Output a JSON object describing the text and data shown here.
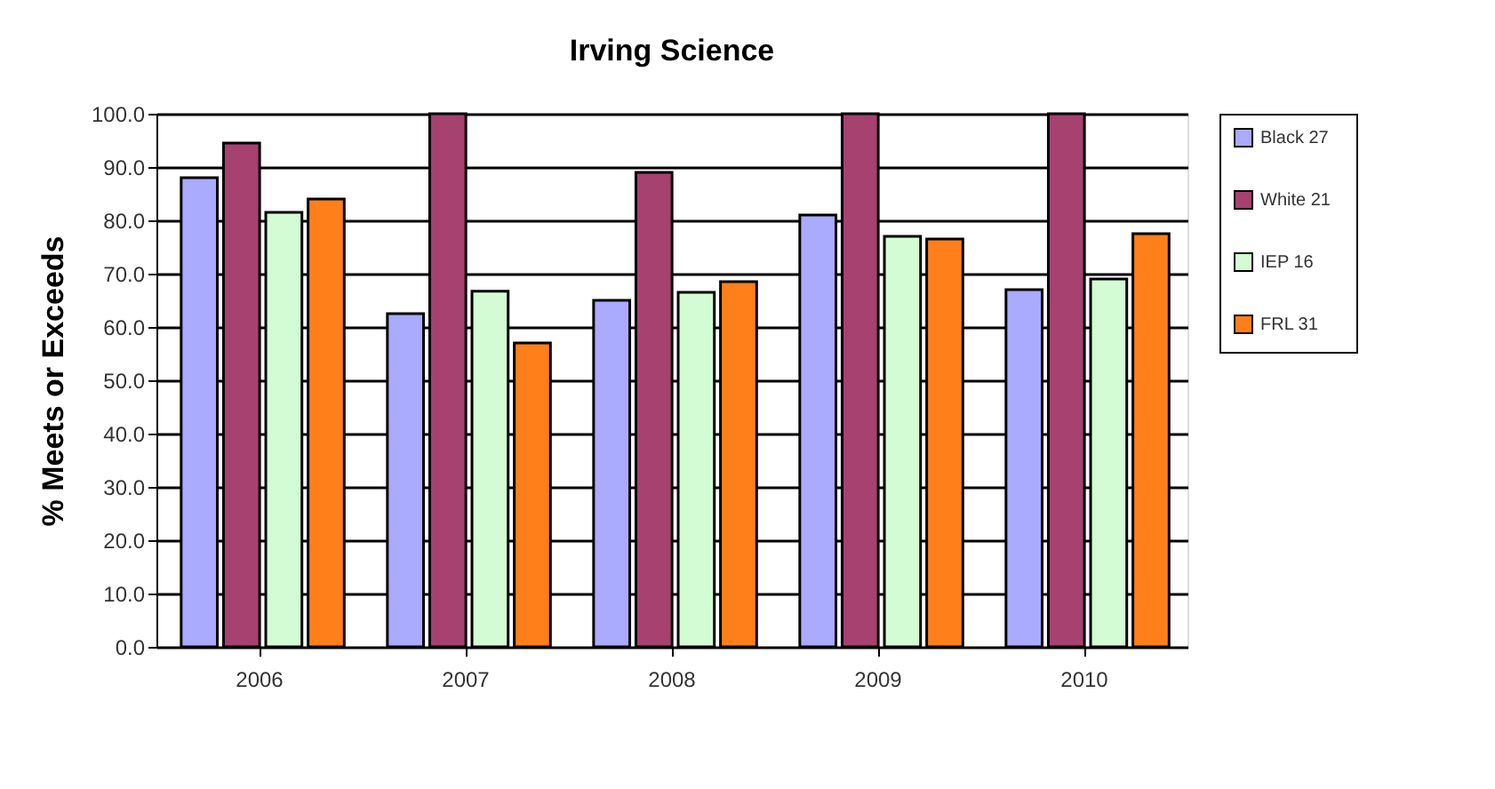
{
  "chart_data": {
    "type": "bar",
    "title": "Irving Science",
    "ylabel": "% Meets or Exceeds",
    "categories": [
      "2006",
      "2007",
      "2008",
      "2009",
      "2010"
    ],
    "series": [
      {
        "name": "Black   27",
        "color": "#aaaaff",
        "values": [
          88,
          62.5,
          65,
          81,
          67
        ]
      },
      {
        "name": "White   21",
        "color": "#a64170",
        "values": [
          94.5,
          100,
          89,
          100,
          100
        ]
      },
      {
        "name": "IEP     16",
        "color": "#d4fcd4",
        "values": [
          81.5,
          66.7,
          66.5,
          77,
          69
        ]
      },
      {
        "name": "FRL     31",
        "color": "#ff7f1a",
        "values": [
          84,
          57,
          68.5,
          76.5,
          77.5
        ]
      }
    ],
    "ylim": [
      0,
      100
    ],
    "yticks": [
      {
        "value": 0,
        "label": "0.0"
      },
      {
        "value": 10,
        "label": "10.0"
      },
      {
        "value": 20,
        "label": "20.0"
      },
      {
        "value": 30,
        "label": "30.0"
      },
      {
        "value": 40,
        "label": "40.0"
      },
      {
        "value": 50,
        "label": "50.0"
      },
      {
        "value": 60,
        "label": "60.0"
      },
      {
        "value": 70,
        "label": "70.0"
      },
      {
        "value": 80,
        "label": "80.0"
      },
      {
        "value": 90,
        "label": "90.0"
      },
      {
        "value": 100,
        "label": "100.0"
      }
    ],
    "grid": "y",
    "legend": "right"
  }
}
